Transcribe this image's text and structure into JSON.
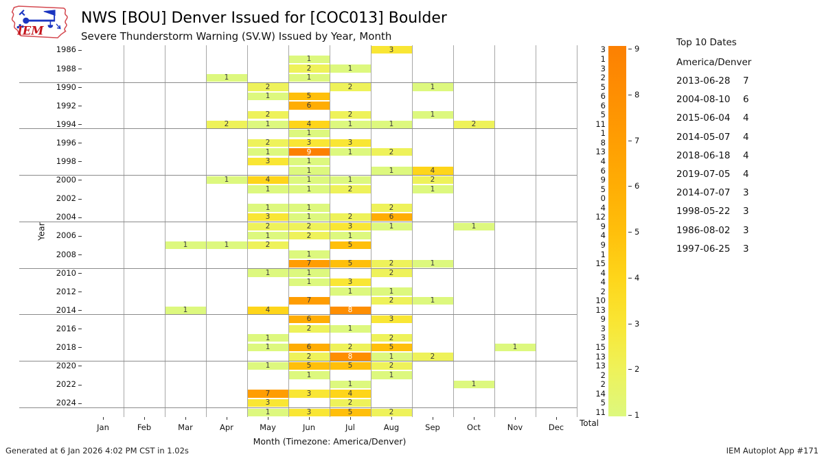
{
  "header": {
    "title": "NWS [BOU] Denver Issued for [COC013] Boulder",
    "subtitle": "Severe Thunderstorm Warning (SV.W) Issued by Year, Month",
    "logo_text": "IEM"
  },
  "chart_data": {
    "type": "heatmap",
    "title": "NWS [BOU] Denver Issued for [COC013] Boulder",
    "subtitle": "Severe Thunderstorm Warning (SV.W) Issued by Year, Month",
    "xlabel": "Month (Timezone: America/Denver)",
    "ylabel": "Year",
    "total_label": "Total",
    "x_categories": [
      "Jan",
      "Feb",
      "Mar",
      "Apr",
      "May",
      "Jun",
      "Jul",
      "Aug",
      "Sep",
      "Oct",
      "Nov",
      "Dec"
    ],
    "rows": [
      {
        "year": 1986,
        "cells": {
          "Aug": 3
        },
        "total": 3
      },
      {
        "year": 1987,
        "cells": {
          "Jun": 1
        },
        "total": 1
      },
      {
        "year": 1988,
        "cells": {
          "Jun": 2,
          "Jul": 1
        },
        "total": 3
      },
      {
        "year": 1989,
        "cells": {
          "Apr": 1,
          "Jun": 1
        },
        "total": 2
      },
      {
        "year": 1990,
        "cells": {
          "May": 2,
          "Jul": 2,
          "Sep": 1
        },
        "total": 5
      },
      {
        "year": 1991,
        "cells": {
          "May": 1,
          "Jun": 5
        },
        "total": 6
      },
      {
        "year": 1992,
        "cells": {
          "Jun": 6
        },
        "total": 6
      },
      {
        "year": 1993,
        "cells": {
          "May": 2,
          "Jul": 2,
          "Sep": 1
        },
        "total": 5
      },
      {
        "year": 1994,
        "cells": {
          "Apr": 2,
          "May": 1,
          "Jun": 4,
          "Jul": 1,
          "Aug": 1,
          "Oct": 2
        },
        "total": 11
      },
      {
        "year": 1995,
        "cells": {
          "Jun": 1
        },
        "total": 1
      },
      {
        "year": 1996,
        "cells": {
          "May": 2,
          "Jun": 3,
          "Jul": 3
        },
        "total": 8
      },
      {
        "year": 1997,
        "cells": {
          "May": 1,
          "Jun": 9,
          "Jul": 1,
          "Aug": 2
        },
        "total": 13
      },
      {
        "year": 1998,
        "cells": {
          "May": 3,
          "Jun": 1
        },
        "total": 4
      },
      {
        "year": 1999,
        "cells": {
          "Jun": 1,
          "Aug": 1,
          "Sep": 4
        },
        "total": 6
      },
      {
        "year": 2000,
        "cells": {
          "Apr": 1,
          "May": 4,
          "Jun": 1,
          "Jul": 1,
          "Sep": 2
        },
        "total": 9
      },
      {
        "year": 2001,
        "cells": {
          "May": 1,
          "Jun": 1,
          "Jul": 2,
          "Sep": 1
        },
        "total": 5
      },
      {
        "year": 2002,
        "cells": {},
        "total": 0
      },
      {
        "year": 2003,
        "cells": {
          "May": 1,
          "Jun": 1,
          "Aug": 2
        },
        "total": 4
      },
      {
        "year": 2004,
        "cells": {
          "May": 3,
          "Jun": 1,
          "Jul": 2,
          "Aug": 6
        },
        "total": 12
      },
      {
        "year": 2005,
        "cells": {
          "May": 2,
          "Jun": 2,
          "Jul": 3,
          "Aug": 1,
          "Oct": 1
        },
        "total": 9
      },
      {
        "year": 2006,
        "cells": {
          "May": 1,
          "Jun": 2,
          "Jul": 1
        },
        "total": 4
      },
      {
        "year": 2007,
        "cells": {
          "Mar": 1,
          "Apr": 1,
          "May": 2,
          "Jul": 5
        },
        "total": 9
      },
      {
        "year": 2008,
        "cells": {
          "Jun": 1
        },
        "total": 1
      },
      {
        "year": 2009,
        "cells": {
          "Jun": 7,
          "Jul": 5,
          "Aug": 2,
          "Sep": 1
        },
        "total": 15
      },
      {
        "year": 2010,
        "cells": {
          "May": 1,
          "Jun": 1,
          "Aug": 2
        },
        "total": 4
      },
      {
        "year": 2011,
        "cells": {
          "Jun": 1,
          "Jul": 3
        },
        "total": 4
      },
      {
        "year": 2012,
        "cells": {
          "Jul": 1,
          "Aug": 1
        },
        "total": 2
      },
      {
        "year": 2013,
        "cells": {
          "Jun": 7,
          "Aug": 2,
          "Sep": 1
        },
        "total": 10
      },
      {
        "year": 2014,
        "cells": {
          "Mar": 1,
          "May": 4,
          "Jul": 8
        },
        "total": 13
      },
      {
        "year": 2015,
        "cells": {
          "Jun": 6,
          "Aug": 3
        },
        "total": 9
      },
      {
        "year": 2016,
        "cells": {
          "Jun": 2,
          "Jul": 1
        },
        "total": 3
      },
      {
        "year": 2017,
        "cells": {
          "May": 1,
          "Aug": 2
        },
        "total": 3
      },
      {
        "year": 2018,
        "cells": {
          "May": 1,
          "Jun": 6,
          "Jul": 2,
          "Aug": 5,
          "Nov": 1
        },
        "total": 15
      },
      {
        "year": 2019,
        "cells": {
          "Jun": 2,
          "Jul": 8,
          "Aug": 1,
          "Sep": 2
        },
        "total": 13
      },
      {
        "year": 2020,
        "cells": {
          "May": 1,
          "Jun": 5,
          "Jul": 5,
          "Aug": 2
        },
        "total": 13
      },
      {
        "year": 2021,
        "cells": {
          "Jun": 1,
          "Aug": 1
        },
        "total": 2
      },
      {
        "year": 2022,
        "cells": {
          "Jul": 1,
          "Oct": 1
        },
        "total": 2
      },
      {
        "year": 2023,
        "cells": {
          "May": 7,
          "Jun": 3,
          "Jul": 4
        },
        "total": 14
      },
      {
        "year": 2024,
        "cells": {
          "May": 3,
          "Jul": 2
        },
        "total": 5
      },
      {
        "year": 2025,
        "cells": {
          "May": 1,
          "Jun": 3,
          "Jul": 5,
          "Aug": 2
        },
        "total": 11
      }
    ],
    "colorbar": {
      "ticks": [
        9,
        8,
        7,
        6,
        5,
        4,
        3,
        2,
        1
      ],
      "palette": {
        "1": "#ddf87e",
        "2": "#eef25a",
        "3": "#f9e634",
        "4": "#fed51a",
        "5": "#ffbf0b",
        "6": "#ffad04",
        "7": "#ff9d02",
        "8": "#fe8e02",
        "9": "#fc8002"
      },
      "gradient_top_to_bottom": [
        "#fc8002",
        "#fe8e02",
        "#ff9d02",
        "#ffad04",
        "#ffbf0b",
        "#fed51a",
        "#f9e634",
        "#eef25a",
        "#ddf87e"
      ],
      "value_range": [
        1,
        9
      ]
    },
    "grid": {
      "vertical_color": "#a6a6a6",
      "five_year_line_color": "#8a8a8a"
    }
  },
  "top10": {
    "title": "Top 10 Dates",
    "timezone": "America/Denver",
    "entries": [
      {
        "date": "2013-06-28",
        "count": 7
      },
      {
        "date": "2004-08-10",
        "count": 6
      },
      {
        "date": "2015-06-04",
        "count": 4
      },
      {
        "date": "2014-05-07",
        "count": 4
      },
      {
        "date": "2018-06-18",
        "count": 4
      },
      {
        "date": "2019-07-05",
        "count": 4
      },
      {
        "date": "2014-07-07",
        "count": 3
      },
      {
        "date": "1998-05-22",
        "count": 3
      },
      {
        "date": "1986-08-02",
        "count": 3
      },
      {
        "date": "1997-06-25",
        "count": 3
      }
    ]
  },
  "footer": {
    "left": "Generated at 6 Jan 2026 4:02 PM CST in 1.02s",
    "right": "IEM Autoplot App #171"
  }
}
